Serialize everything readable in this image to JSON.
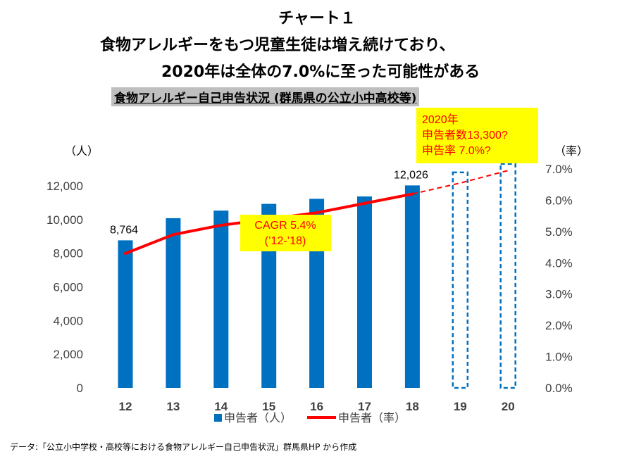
{
  "header": {
    "title1": "チャート１",
    "title2": "食物アレルギーをもつ児童生徒は増え続けており、",
    "title3": "2020年は全体の7.0%に至った可能性がある",
    "subtitle": "食物アレルギー自己申告状況 (群馬県の公立小中高校等)"
  },
  "chart_data": {
    "type": "bar",
    "categories": [
      "12",
      "13",
      "14",
      "15",
      "16",
      "17",
      "18",
      "19",
      "20"
    ],
    "series": [
      {
        "name": "申告者(人)",
        "kind": "bar",
        "axis": "left",
        "values": [
          8764,
          10080,
          10530,
          10930,
          11230,
          11370,
          12026,
          null,
          null
        ],
        "projected_values": [
          null,
          null,
          null,
          null,
          null,
          null,
          null,
          12800,
          13300
        ]
      },
      {
        "name": "申告者(率)",
        "kind": "line",
        "axis": "right",
        "values": [
          4.3,
          4.9,
          5.2,
          5.4,
          5.6,
          5.9,
          6.2,
          null,
          null
        ],
        "projected_values": [
          null,
          null,
          null,
          null,
          null,
          null,
          6.2,
          6.55,
          6.95
        ]
      }
    ],
    "y_left": {
      "unit": "（人）",
      "ylim": [
        0,
        13000
      ],
      "ticks": [
        "0",
        "2,000",
        "4,000",
        "6,000",
        "8,000",
        "10,000",
        "12,000"
      ]
    },
    "y_right": {
      "unit": "（率）",
      "ylim": [
        0,
        7.0
      ],
      "ticks": [
        "0.0%",
        "1.0%",
        "2.0%",
        "3.0%",
        "4.0%",
        "5.0%",
        "6.0%",
        "7.0%"
      ]
    },
    "data_labels": [
      {
        "category": "12",
        "text": "8,764"
      },
      {
        "category": "18",
        "text": "12,026"
      }
    ],
    "annotations": {
      "cagr": [
        "CAGR 5.4%",
        "(’12-’18)"
      ],
      "forecast": [
        "2020年",
        "申告者数13,300?",
        "申告率 7.0%?"
      ]
    },
    "legend": [
      "申告者（人）",
      "申告者（率）"
    ],
    "legend_position": "bottom",
    "grid": false,
    "colors": {
      "bar": "#0070c0",
      "line": "#ff0000",
      "annotation_bg": "#ffff00",
      "annotation_text": "#ff0000",
      "axis_text": "#404040"
    }
  },
  "footer": {
    "source": "データ:「公立小中学校・高校等における食物アレルギー自己申告状況」群馬県HP から作成"
  }
}
